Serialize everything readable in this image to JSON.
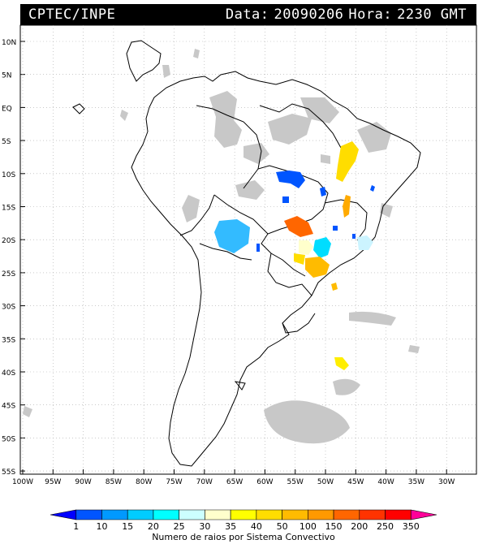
{
  "header": {
    "source": "CPTEC/INPE",
    "date_label": "Data:",
    "date_value": "20090206",
    "time_label": "Hora:",
    "time_value": "2230 GMT"
  },
  "map": {
    "lat_labels": [
      "10N",
      "5N",
      "EQ",
      "5S",
      "10S",
      "15S",
      "20S",
      "25S",
      "30S",
      "35S",
      "40S",
      "45S",
      "50S",
      "55S"
    ],
    "lon_labels": [
      "100W",
      "95W",
      "90W",
      "85W",
      "80W",
      "75W",
      "70W",
      "65W",
      "60W",
      "55W",
      "50W",
      "45W",
      "40W",
      "35W",
      "30W"
    ]
  },
  "colorbar": {
    "title": "Numero de raios por Sistema Convectivo",
    "tick_labels": [
      "1",
      "10",
      "15",
      "20",
      "25",
      "30",
      "35",
      "40",
      "50",
      "100",
      "150",
      "200",
      "250",
      "350"
    ],
    "colors": [
      "#0000ff",
      "#0055ff",
      "#0099ff",
      "#00ccff",
      "#00ffff",
      "#ccffff",
      "#ffffcc",
      "#ffff00",
      "#ffdd00",
      "#ffbb00",
      "#ff9900",
      "#ff6600",
      "#ff3300",
      "#ff0000",
      "#ff0099"
    ]
  },
  "colors": {
    "cloud": "#c8c8c8",
    "coast": "#000000",
    "grid": "#999999"
  }
}
